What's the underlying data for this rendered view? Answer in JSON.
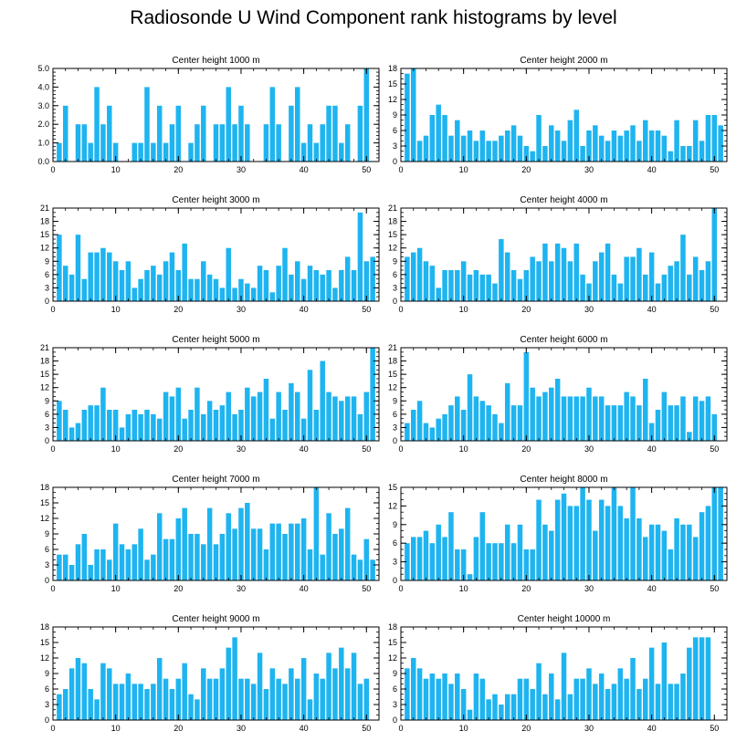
{
  "figure_title": "Radiosonde U Wind Component rank histograms by level",
  "bar_color": "#1EB4F0",
  "chart_data": [
    {
      "type": "bar",
      "title": "Center height 1000 m",
      "xlim": [
        0,
        52
      ],
      "ylim": [
        0,
        5
      ],
      "yticks": [
        0,
        1,
        2,
        3,
        4,
        5
      ],
      "ytick_labels": [
        "0.0",
        "1.0",
        "2.0",
        "3.0",
        "4.0",
        "5.0"
      ],
      "xticks": [
        0,
        10,
        20,
        30,
        40,
        50
      ],
      "xtick_labels": [
        "0",
        "10",
        "20",
        "30",
        "40",
        "50"
      ],
      "categories": [
        1,
        2,
        3,
        4,
        5,
        6,
        7,
        8,
        9,
        10,
        11,
        12,
        13,
        14,
        15,
        16,
        17,
        18,
        19,
        20,
        21,
        22,
        23,
        24,
        25,
        26,
        27,
        28,
        29,
        30,
        31,
        32,
        33,
        34,
        35,
        36,
        37,
        38,
        39,
        40,
        41,
        42,
        43,
        44,
        45,
        46,
        47,
        48,
        49,
        50,
        51
      ],
      "values": [
        1,
        3,
        0,
        2,
        2,
        1,
        4,
        2,
        3,
        1,
        0,
        0,
        1,
        1,
        4,
        1,
        3,
        1,
        2,
        3,
        0,
        1,
        2,
        3,
        0,
        2,
        2,
        4,
        2,
        3,
        2,
        0,
        0,
        2,
        4,
        2,
        0,
        3,
        4,
        1,
        2,
        1,
        2,
        3,
        3,
        1,
        2,
        0,
        3,
        5,
        0
      ]
    },
    {
      "type": "bar",
      "title": "Center height 2000 m",
      "xlim": [
        0,
        52
      ],
      "ylim": [
        0,
        18
      ],
      "yticks": [
        0,
        3,
        6,
        9,
        12,
        15,
        18
      ],
      "ytick_labels": [
        "0",
        "3",
        "6",
        "9",
        "12",
        "15",
        "18"
      ],
      "xticks": [
        0,
        10,
        20,
        30,
        40,
        50
      ],
      "xtick_labels": [
        "0",
        "10",
        "20",
        "30",
        "40",
        "50"
      ],
      "categories": [
        1,
        2,
        3,
        4,
        5,
        6,
        7,
        8,
        9,
        10,
        11,
        12,
        13,
        14,
        15,
        16,
        17,
        18,
        19,
        20,
        21,
        22,
        23,
        24,
        25,
        26,
        27,
        28,
        29,
        30,
        31,
        32,
        33,
        34,
        35,
        36,
        37,
        38,
        39,
        40,
        41,
        42,
        43,
        44,
        45,
        46,
        47,
        48,
        49,
        50,
        51
      ],
      "values": [
        17,
        18,
        4,
        5,
        9,
        11,
        9,
        5,
        8,
        5,
        6,
        4,
        6,
        4,
        4,
        5,
        6,
        7,
        5,
        3,
        2,
        9,
        3,
        7,
        6,
        4,
        8,
        10,
        3,
        6,
        7,
        5,
        4,
        6,
        5,
        6,
        7,
        4,
        8,
        6,
        6,
        5,
        2,
        8,
        3,
        3,
        8,
        4,
        9,
        9,
        7
      ]
    },
    {
      "type": "bar",
      "title": "Center height 3000 m",
      "xlim": [
        0,
        52
      ],
      "ylim": [
        0,
        21
      ],
      "yticks": [
        0,
        3,
        6,
        9,
        12,
        15,
        18,
        21
      ],
      "ytick_labels": [
        "0",
        "3",
        "6",
        "9",
        "12",
        "15",
        "18",
        "21"
      ],
      "xticks": [
        0,
        10,
        20,
        30,
        40,
        50
      ],
      "xtick_labels": [
        "0",
        "10",
        "20",
        "30",
        "40",
        "50"
      ],
      "categories": [
        1,
        2,
        3,
        4,
        5,
        6,
        7,
        8,
        9,
        10,
        11,
        12,
        13,
        14,
        15,
        16,
        17,
        18,
        19,
        20,
        21,
        22,
        23,
        24,
        25,
        26,
        27,
        28,
        29,
        30,
        31,
        32,
        33,
        34,
        35,
        36,
        37,
        38,
        39,
        40,
        41,
        42,
        43,
        44,
        45,
        46,
        47,
        48,
        49,
        50,
        51
      ],
      "values": [
        15,
        8,
        6,
        15,
        5,
        11,
        11,
        12,
        11,
        9,
        7,
        9,
        3,
        5,
        7,
        8,
        6,
        9,
        11,
        7,
        13,
        5,
        5,
        9,
        6,
        5,
        3,
        12,
        3,
        5,
        4,
        3,
        8,
        7,
        2,
        8,
        12,
        6,
        9,
        5,
        8,
        7,
        6,
        7,
        3,
        7,
        10,
        7,
        20,
        9,
        10
      ]
    },
    {
      "type": "bar",
      "title": "Center height 4000 m",
      "xlim": [
        0,
        52
      ],
      "ylim": [
        0,
        21
      ],
      "yticks": [
        0,
        3,
        6,
        9,
        12,
        15,
        18,
        21
      ],
      "ytick_labels": [
        "0",
        "3",
        "6",
        "9",
        "12",
        "15",
        "18",
        "21"
      ],
      "xticks": [
        0,
        10,
        20,
        30,
        40,
        50
      ],
      "xtick_labels": [
        "0",
        "10",
        "20",
        "30",
        "40",
        "50"
      ],
      "categories": [
        1,
        2,
        3,
        4,
        5,
        6,
        7,
        8,
        9,
        10,
        11,
        12,
        13,
        14,
        15,
        16,
        17,
        18,
        19,
        20,
        21,
        22,
        23,
        24,
        25,
        26,
        27,
        28,
        29,
        30,
        31,
        32,
        33,
        34,
        35,
        36,
        37,
        38,
        39,
        40,
        41,
        42,
        43,
        44,
        45,
        46,
        47,
        48,
        49,
        50,
        51
      ],
      "values": [
        10,
        11,
        12,
        9,
        8,
        3,
        7,
        7,
        7,
        9,
        6,
        7,
        6,
        6,
        4,
        14,
        11,
        7,
        5,
        7,
        10,
        9,
        13,
        9,
        13,
        12,
        9,
        13,
        6,
        4,
        9,
        11,
        13,
        6,
        4,
        10,
        10,
        12,
        6,
        11,
        4,
        6,
        8,
        9,
        15,
        6,
        10,
        7,
        9,
        21,
        0
      ]
    },
    {
      "type": "bar",
      "title": "Center height 5000 m",
      "xlim": [
        0,
        52
      ],
      "ylim": [
        0,
        21
      ],
      "yticks": [
        0,
        3,
        6,
        9,
        12,
        15,
        18,
        21
      ],
      "ytick_labels": [
        "0",
        "3",
        "6",
        "9",
        "12",
        "15",
        "18",
        "21"
      ],
      "xticks": [
        0,
        10,
        20,
        30,
        40,
        50
      ],
      "xtick_labels": [
        "0",
        "10",
        "20",
        "30",
        "40",
        "50"
      ],
      "categories": [
        1,
        2,
        3,
        4,
        5,
        6,
        7,
        8,
        9,
        10,
        11,
        12,
        13,
        14,
        15,
        16,
        17,
        18,
        19,
        20,
        21,
        22,
        23,
        24,
        25,
        26,
        27,
        28,
        29,
        30,
        31,
        32,
        33,
        34,
        35,
        36,
        37,
        38,
        39,
        40,
        41,
        42,
        43,
        44,
        45,
        46,
        47,
        48,
        49,
        50,
        51
      ],
      "values": [
        9,
        7,
        3,
        4,
        7,
        8,
        8,
        12,
        7,
        7,
        3,
        6,
        7,
        6,
        7,
        6,
        5,
        11,
        10,
        12,
        5,
        7,
        12,
        6,
        9,
        7,
        8,
        11,
        6,
        7,
        12,
        10,
        11,
        14,
        5,
        11,
        7,
        13,
        11,
        5,
        16,
        7,
        18,
        11,
        10,
        9,
        10,
        10,
        6,
        11,
        21
      ]
    },
    {
      "type": "bar",
      "title": "Center height 6000 m",
      "xlim": [
        0,
        52
      ],
      "ylim": [
        0,
        21
      ],
      "yticks": [
        0,
        3,
        6,
        9,
        12,
        15,
        18,
        21
      ],
      "ytick_labels": [
        "0",
        "3",
        "6",
        "9",
        "12",
        "15",
        "18",
        "21"
      ],
      "xticks": [
        0,
        10,
        20,
        30,
        40,
        50
      ],
      "xtick_labels": [
        "0",
        "10",
        "20",
        "30",
        "40",
        "50"
      ],
      "categories": [
        1,
        2,
        3,
        4,
        5,
        6,
        7,
        8,
        9,
        10,
        11,
        12,
        13,
        14,
        15,
        16,
        17,
        18,
        19,
        20,
        21,
        22,
        23,
        24,
        25,
        26,
        27,
        28,
        29,
        30,
        31,
        32,
        33,
        34,
        35,
        36,
        37,
        38,
        39,
        40,
        41,
        42,
        43,
        44,
        45,
        46,
        47,
        48,
        49,
        50,
        51
      ],
      "values": [
        4,
        7,
        9,
        4,
        3,
        5,
        6,
        8,
        10,
        7,
        15,
        10,
        9,
        8,
        6,
        4,
        13,
        8,
        8,
        20,
        12,
        10,
        11,
        12,
        14,
        10,
        10,
        10,
        10,
        12,
        10,
        10,
        8,
        8,
        8,
        11,
        10,
        8,
        14,
        4,
        7,
        11,
        8,
        8,
        10,
        2,
        10,
        9,
        10,
        6,
        0
      ]
    },
    {
      "type": "bar",
      "title": "Center height 7000 m",
      "xlim": [
        0,
        52
      ],
      "ylim": [
        0,
        18
      ],
      "yticks": [
        0,
        3,
        6,
        9,
        12,
        15,
        18
      ],
      "ytick_labels": [
        "0",
        "3",
        "6",
        "9",
        "12",
        "15",
        "18"
      ],
      "xticks": [
        0,
        10,
        20,
        30,
        40,
        50
      ],
      "xtick_labels": [
        "0",
        "10",
        "20",
        "30",
        "40",
        "50"
      ],
      "categories": [
        1,
        2,
        3,
        4,
        5,
        6,
        7,
        8,
        9,
        10,
        11,
        12,
        13,
        14,
        15,
        16,
        17,
        18,
        19,
        20,
        21,
        22,
        23,
        24,
        25,
        26,
        27,
        28,
        29,
        30,
        31,
        32,
        33,
        34,
        35,
        36,
        37,
        38,
        39,
        40,
        41,
        42,
        43,
        44,
        45,
        46,
        47,
        48,
        49,
        50,
        51
      ],
      "values": [
        5,
        5,
        3,
        7,
        9,
        3,
        6,
        6,
        4,
        11,
        7,
        6,
        7,
        10,
        4,
        5,
        13,
        8,
        8,
        12,
        14,
        9,
        9,
        7,
        14,
        7,
        9,
        13,
        10,
        14,
        15,
        10,
        10,
        6,
        11,
        11,
        9,
        11,
        11,
        12,
        6,
        18,
        5,
        13,
        9,
        10,
        14,
        5,
        4,
        8,
        4
      ]
    },
    {
      "type": "bar",
      "title": "Center height 8000 m",
      "xlim": [
        0,
        52
      ],
      "ylim": [
        0,
        15
      ],
      "yticks": [
        0,
        3,
        6,
        9,
        12,
        15
      ],
      "ytick_labels": [
        "0",
        "3",
        "6",
        "9",
        "12",
        "15"
      ],
      "xticks": [
        0,
        10,
        20,
        30,
        40,
        50
      ],
      "xtick_labels": [
        "0",
        "10",
        "20",
        "30",
        "40",
        "50"
      ],
      "categories": [
        1,
        2,
        3,
        4,
        5,
        6,
        7,
        8,
        9,
        10,
        11,
        12,
        13,
        14,
        15,
        16,
        17,
        18,
        19,
        20,
        21,
        22,
        23,
        24,
        25,
        26,
        27,
        28,
        29,
        30,
        31,
        32,
        33,
        34,
        35,
        36,
        37,
        38,
        39,
        40,
        41,
        42,
        43,
        44,
        45,
        46,
        47,
        48,
        49,
        50,
        51
      ],
      "values": [
        6,
        7,
        7,
        8,
        6,
        9,
        7,
        11,
        5,
        5,
        1,
        7,
        11,
        6,
        6,
        6,
        9,
        6,
        9,
        5,
        5,
        13,
        9,
        8,
        13,
        14,
        12,
        12,
        15,
        13,
        8,
        13,
        12,
        15,
        12,
        10,
        15,
        10,
        7,
        9,
        9,
        8,
        5,
        10,
        9,
        9,
        7,
        11,
        12,
        15,
        15
      ]
    },
    {
      "type": "bar",
      "title": "Center height 9000 m",
      "xlim": [
        0,
        52
      ],
      "ylim": [
        0,
        18
      ],
      "yticks": [
        0,
        3,
        6,
        9,
        12,
        15,
        18
      ],
      "ytick_labels": [
        "0",
        "3",
        "6",
        "9",
        "12",
        "15",
        "18"
      ],
      "xticks": [
        0,
        10,
        20,
        30,
        40,
        50
      ],
      "xtick_labels": [
        "0",
        "10",
        "20",
        "30",
        "40",
        "50"
      ],
      "categories": [
        1,
        2,
        3,
        4,
        5,
        6,
        7,
        8,
        9,
        10,
        11,
        12,
        13,
        14,
        15,
        16,
        17,
        18,
        19,
        20,
        21,
        22,
        23,
        24,
        25,
        26,
        27,
        28,
        29,
        30,
        31,
        32,
        33,
        34,
        35,
        36,
        37,
        38,
        39,
        40,
        41,
        42,
        43,
        44,
        45,
        46,
        47,
        48,
        49,
        50,
        51
      ],
      "values": [
        5,
        6,
        10,
        12,
        11,
        6,
        4,
        11,
        10,
        7,
        7,
        9,
        7,
        7,
        6,
        7,
        12,
        8,
        6,
        8,
        11,
        5,
        4,
        10,
        8,
        8,
        10,
        14,
        16,
        8,
        8,
        7,
        13,
        6,
        10,
        8,
        7,
        10,
        8,
        12,
        4,
        9,
        8,
        13,
        10,
        14,
        10,
        13,
        7,
        8,
        0
      ]
    },
    {
      "type": "bar",
      "title": "Center height 10000 m",
      "xlim": [
        0,
        52
      ],
      "ylim": [
        0,
        18
      ],
      "yticks": [
        0,
        3,
        6,
        9,
        12,
        15,
        18
      ],
      "ytick_labels": [
        "0",
        "3",
        "6",
        "9",
        "12",
        "15",
        "18"
      ],
      "xticks": [
        0,
        10,
        20,
        30,
        40,
        50
      ],
      "xtick_labels": [
        "0",
        "10",
        "20",
        "30",
        "40",
        "50"
      ],
      "categories": [
        1,
        2,
        3,
        4,
        5,
        6,
        7,
        8,
        9,
        10,
        11,
        12,
        13,
        14,
        15,
        16,
        17,
        18,
        19,
        20,
        21,
        22,
        23,
        24,
        25,
        26,
        27,
        28,
        29,
        30,
        31,
        32,
        33,
        34,
        35,
        36,
        37,
        38,
        39,
        40,
        41,
        42,
        43,
        44,
        45,
        46,
        47,
        48,
        49,
        50,
        51
      ],
      "values": [
        10,
        12,
        10,
        8,
        9,
        8,
        9,
        7,
        9,
        6,
        2,
        9,
        8,
        4,
        5,
        3,
        5,
        5,
        8,
        8,
        6,
        11,
        5,
        9,
        4,
        13,
        5,
        8,
        8,
        10,
        7,
        9,
        6,
        7,
        10,
        8,
        12,
        6,
        8,
        14,
        7,
        15,
        7,
        7,
        9,
        14,
        16,
        16,
        16,
        0,
        0
      ]
    }
  ]
}
